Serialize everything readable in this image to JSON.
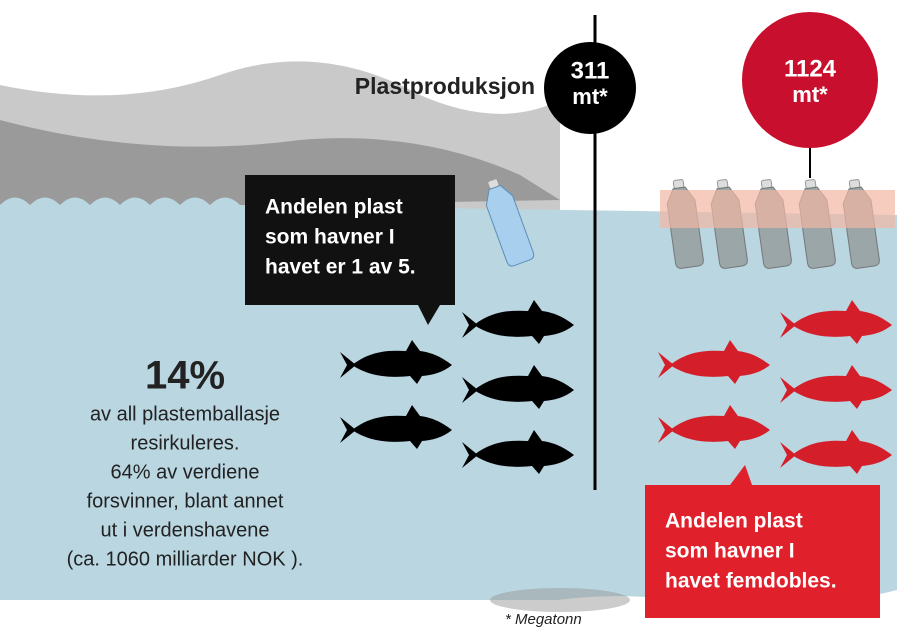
{
  "production_label": "Plastproduksjon",
  "now": {
    "amount": "311",
    "unit": "mt*"
  },
  "future": {
    "amount": "1124",
    "unit": "mt*"
  },
  "callout_now": [
    "Andelen plast",
    "som havner I",
    "havet er 1 av 5."
  ],
  "callout_future": [
    "Andelen plast",
    "som havner I",
    "havet femdobles."
  ],
  "recycling": {
    "headline": "14%",
    "lines": [
      "av all plastemballasje",
      "resirkuleres.",
      "64% av verdiene",
      "forsvinner, blant annet",
      "ut i verdenshavene",
      "(ca. 1060 milliarder NOK )."
    ]
  },
  "footnote": "* Megatonn"
}
